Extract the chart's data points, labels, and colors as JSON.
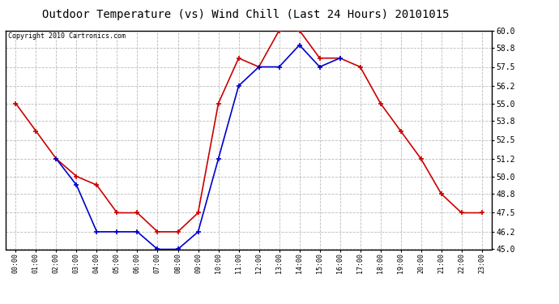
{
  "title": "Outdoor Temperature (vs) Wind Chill (Last 24 Hours) 20101015",
  "copyright": "Copyright 2010 Cartronics.com",
  "hours": [
    "00:00",
    "01:00",
    "02:00",
    "03:00",
    "04:00",
    "05:00",
    "06:00",
    "07:00",
    "08:00",
    "09:00",
    "10:00",
    "11:00",
    "12:00",
    "13:00",
    "14:00",
    "15:00",
    "16:00",
    "17:00",
    "18:00",
    "19:00",
    "20:00",
    "21:00",
    "22:00",
    "23:00"
  ],
  "temp": [
    55.0,
    53.1,
    51.2,
    50.0,
    49.4,
    47.5,
    47.5,
    46.2,
    46.2,
    47.5,
    55.0,
    58.1,
    57.5,
    60.0,
    60.0,
    58.1,
    58.1,
    57.5,
    55.0,
    53.1,
    51.2,
    48.8,
    47.5,
    47.5
  ],
  "wind_chill": [
    null,
    null,
    51.2,
    49.4,
    46.2,
    46.2,
    46.2,
    45.0,
    45.0,
    46.2,
    51.2,
    56.2,
    57.5,
    57.5,
    59.0,
    57.5,
    58.1,
    null,
    null,
    null,
    null,
    null,
    null,
    null
  ],
  "ylim": [
    45.0,
    60.0
  ],
  "yticks": [
    45.0,
    46.2,
    47.5,
    48.8,
    50.0,
    51.2,
    52.5,
    53.8,
    55.0,
    56.2,
    57.5,
    58.8,
    60.0
  ],
  "temp_color": "#cc0000",
  "wind_chill_color": "#0000cc",
  "bg_color": "#ffffff",
  "grid_color": "#bbbbbb",
  "title_fontsize": 10,
  "copyright_fontsize": 6,
  "markersize": 4,
  "linewidth": 1.2,
  "figwidth": 6.9,
  "figheight": 3.75,
  "dpi": 100
}
